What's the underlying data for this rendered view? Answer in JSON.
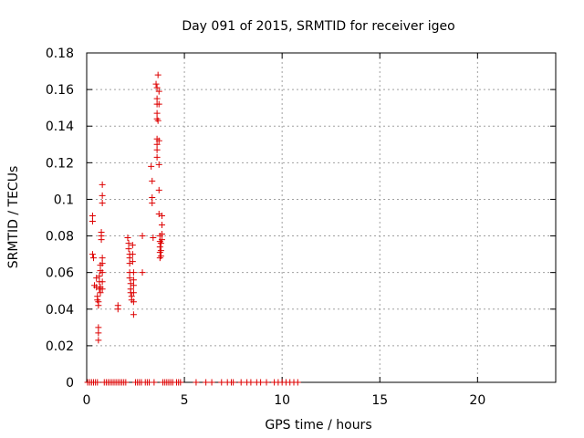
{
  "chart_data": {
    "type": "scatter",
    "title": "Day 091 of 2015, SRMTID for receiver igeo",
    "xlabel": "GPS time / hours",
    "ylabel": "SRMTID / TECUs",
    "xlim": [
      0,
      24
    ],
    "ylim": [
      0,
      0.18
    ],
    "xticks": [
      0,
      5,
      10,
      15,
      20
    ],
    "xtick_labels": [
      "0",
      "5",
      "10",
      "15",
      "20"
    ],
    "yticks": [
      0,
      0.02,
      0.04,
      0.06,
      0.08,
      0.1,
      0.12,
      0.14,
      0.16,
      0.18
    ],
    "ytick_labels": [
      "0",
      "0.02",
      "0.04",
      "0.06",
      "0.08",
      "0.1",
      "0.12",
      "0.14",
      "0.16",
      "0.18"
    ],
    "grid": true,
    "marker": "+",
    "color": "#dd0000",
    "series": [
      {
        "points": [
          [
            0.3,
            0.091
          ],
          [
            0.3,
            0.088
          ],
          [
            0.3,
            0.07
          ],
          [
            0.35,
            0.068
          ],
          [
            0.4,
            0.053
          ],
          [
            0.5,
            0.057
          ],
          [
            0.5,
            0.052
          ],
          [
            0.55,
            0.047
          ],
          [
            0.55,
            0.045
          ],
          [
            0.6,
            0.044
          ],
          [
            0.6,
            0.042
          ],
          [
            0.6,
            0.03
          ],
          [
            0.6,
            0.027
          ],
          [
            0.6,
            0.023
          ],
          [
            0.65,
            0.058
          ],
          [
            0.65,
            0.055
          ],
          [
            0.65,
            0.051
          ],
          [
            0.7,
            0.064
          ],
          [
            0.7,
            0.061
          ],
          [
            0.7,
            0.049
          ],
          [
            0.7,
            0.052
          ],
          [
            0.75,
            0.082
          ],
          [
            0.75,
            0.08
          ],
          [
            0.75,
            0.078
          ],
          [
            0.8,
            0.108
          ],
          [
            0.8,
            0.102
          ],
          [
            0.8,
            0.098
          ],
          [
            0.8,
            0.068
          ],
          [
            0.8,
            0.065
          ],
          [
            0.8,
            0.06
          ],
          [
            0.8,
            0.055
          ],
          [
            0.8,
            0.051
          ],
          [
            1.6,
            0.042
          ],
          [
            1.6,
            0.04
          ],
          [
            2.1,
            0.079
          ],
          [
            2.15,
            0.076
          ],
          [
            2.15,
            0.073
          ],
          [
            2.2,
            0.07
          ],
          [
            2.2,
            0.068
          ],
          [
            2.2,
            0.065
          ],
          [
            2.2,
            0.06
          ],
          [
            2.2,
            0.057
          ],
          [
            2.25,
            0.054
          ],
          [
            2.25,
            0.051
          ],
          [
            2.25,
            0.049
          ],
          [
            2.3,
            0.047
          ],
          [
            2.3,
            0.045
          ],
          [
            2.35,
            0.075
          ],
          [
            2.35,
            0.07
          ],
          [
            2.35,
            0.066
          ],
          [
            2.4,
            0.06
          ],
          [
            2.4,
            0.056
          ],
          [
            2.4,
            0.053
          ],
          [
            2.4,
            0.049
          ],
          [
            2.4,
            0.044
          ],
          [
            2.4,
            0.037
          ],
          [
            2.85,
            0.06
          ],
          [
            2.85,
            0.08
          ],
          [
            3.3,
            0.118
          ],
          [
            3.35,
            0.11
          ],
          [
            3.35,
            0.101
          ],
          [
            3.35,
            0.098
          ],
          [
            3.4,
            0.079
          ],
          [
            3.55,
            0.163
          ],
          [
            3.6,
            0.161
          ],
          [
            3.6,
            0.155
          ],
          [
            3.6,
            0.152
          ],
          [
            3.6,
            0.147
          ],
          [
            3.6,
            0.144
          ],
          [
            3.65,
            0.143
          ],
          [
            3.6,
            0.133
          ],
          [
            3.6,
            0.13
          ],
          [
            3.6,
            0.127
          ],
          [
            3.6,
            0.123
          ],
          [
            3.65,
            0.168
          ],
          [
            3.7,
            0.159
          ],
          [
            3.7,
            0.152
          ],
          [
            3.7,
            0.132
          ],
          [
            3.7,
            0.119
          ],
          [
            3.7,
            0.105
          ],
          [
            3.7,
            0.092
          ],
          [
            3.75,
            0.08
          ],
          [
            3.75,
            0.077
          ],
          [
            3.75,
            0.074
          ],
          [
            3.75,
            0.071
          ],
          [
            3.75,
            0.068
          ],
          [
            3.8,
            0.076
          ],
          [
            3.8,
            0.072
          ],
          [
            3.8,
            0.069
          ],
          [
            3.85,
            0.091
          ],
          [
            3.85,
            0.086
          ],
          [
            3.85,
            0.081
          ],
          [
            3.85,
            0.078
          ],
          [
            0.05,
            0
          ],
          [
            0.15,
            0
          ],
          [
            0.25,
            0
          ],
          [
            0.35,
            0
          ],
          [
            0.45,
            0
          ],
          [
            0.55,
            0
          ],
          [
            0.9,
            0
          ],
          [
            1.0,
            0
          ],
          [
            1.1,
            0
          ],
          [
            1.2,
            0
          ],
          [
            1.3,
            0
          ],
          [
            1.4,
            0
          ],
          [
            1.5,
            0
          ],
          [
            1.6,
            0
          ],
          [
            1.7,
            0
          ],
          [
            1.8,
            0
          ],
          [
            1.9,
            0
          ],
          [
            2.0,
            0
          ],
          [
            2.5,
            0
          ],
          [
            2.6,
            0
          ],
          [
            2.7,
            0
          ],
          [
            2.8,
            0
          ],
          [
            3.0,
            0
          ],
          [
            3.1,
            0
          ],
          [
            3.2,
            0
          ],
          [
            3.45,
            0
          ],
          [
            3.9,
            0
          ],
          [
            4.0,
            0
          ],
          [
            4.1,
            0
          ],
          [
            4.2,
            0
          ],
          [
            4.3,
            0
          ],
          [
            4.4,
            0
          ],
          [
            4.6,
            0
          ],
          [
            4.7,
            0
          ],
          [
            4.8,
            0
          ],
          [
            5.6,
            0
          ],
          [
            6.1,
            0
          ],
          [
            6.4,
            0
          ],
          [
            6.9,
            0
          ],
          [
            7.2,
            0
          ],
          [
            7.4,
            0
          ],
          [
            7.5,
            0
          ],
          [
            7.9,
            0
          ],
          [
            8.2,
            0
          ],
          [
            8.4,
            0
          ],
          [
            8.7,
            0
          ],
          [
            8.9,
            0
          ],
          [
            9.2,
            0
          ],
          [
            9.6,
            0
          ],
          [
            9.8,
            0
          ],
          [
            10.0,
            0
          ],
          [
            10.2,
            0
          ],
          [
            10.4,
            0
          ],
          [
            10.6,
            0
          ],
          [
            10.8,
            0
          ]
        ]
      }
    ]
  }
}
